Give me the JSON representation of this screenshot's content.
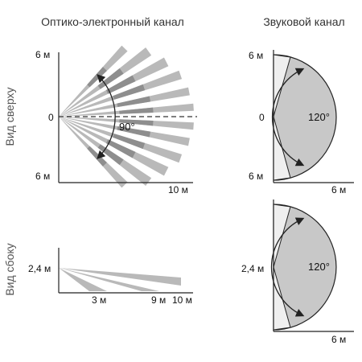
{
  "titles": {
    "optical": "Оптико-электронный канал",
    "sound": "Звуковой канал"
  },
  "side_labels": {
    "top_view": "Вид сверху",
    "side_view": "Вид сбоку"
  },
  "optical_top": {
    "y_top": "6 м",
    "y_mid": "0",
    "y_bottom": "6 м",
    "x_end": "10 м",
    "angle": "90°"
  },
  "optical_side": {
    "height": "2,4 м",
    "x_3": "3 м",
    "x_9": "9 м",
    "x_10": "10 м"
  },
  "sound_top": {
    "y_top": "6 м",
    "y_mid": "0",
    "y_bottom": "6 м",
    "x_end": "6 м",
    "angle": "120°"
  },
  "sound_side": {
    "height": "2,4 м",
    "x_end": "6 м",
    "angle": "120°"
  },
  "colors": {
    "beam": "#b9b9b9",
    "beam_dark": "#8e8e8e",
    "sector": "#c8c8c8",
    "light": "#efefef",
    "line": "#222222"
  }
}
